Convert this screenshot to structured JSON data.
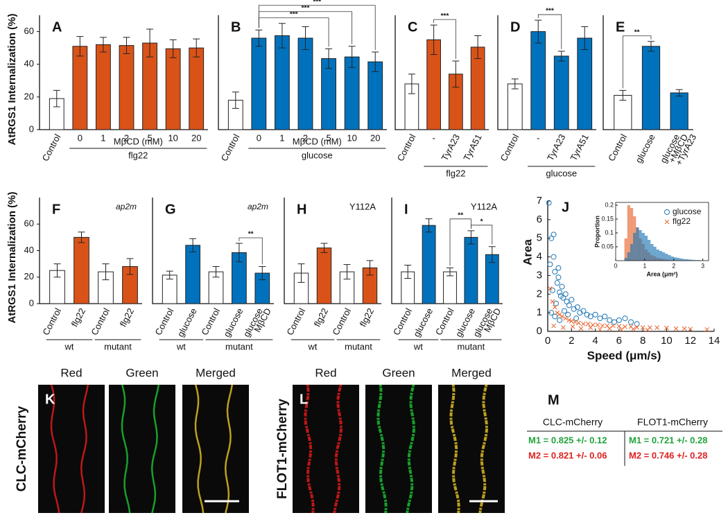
{
  "chart_data": [
    {
      "type": "bar",
      "panel": "A",
      "ylabel": "AtRGS1 Internalization (%)",
      "categories": [
        "Control",
        "0",
        "1",
        "2",
        "5",
        "10",
        "20"
      ],
      "values": [
        19,
        51,
        52,
        51.5,
        53,
        49.5,
        50
      ],
      "errors": [
        5,
        6,
        4.5,
        5,
        8.5,
        5.5,
        5.5
      ],
      "colors": [
        "#ffffff",
        "#d95319",
        "#d95319",
        "#d95319",
        "#d95319",
        "#d95319",
        "#d95319"
      ],
      "ylim": [
        0,
        70
      ],
      "yticks": [
        0,
        20,
        40,
        60
      ],
      "groups": [
        [
          {
            "label": "MβCD (mM)",
            "span": [
              1,
              6
            ]
          }
        ],
        [
          {
            "label": "flg22",
            "span": [
              1,
              6
            ]
          }
        ]
      ]
    },
    {
      "type": "bar",
      "panel": "B",
      "categories": [
        "Control",
        "0",
        "1",
        "2",
        "5",
        "10",
        "20"
      ],
      "values": [
        18,
        56,
        57.5,
        56,
        43.5,
        44.5,
        41.5
      ],
      "errors": [
        5,
        5,
        7.5,
        7,
        6,
        6.5,
        6
      ],
      "colors": [
        "#ffffff",
        "#0072bd",
        "#0072bd",
        "#0072bd",
        "#0072bd",
        "#0072bd",
        "#0072bd"
      ],
      "ylim": [
        0,
        70
      ],
      "groups": [
        [
          {
            "label": "MβCD (mM)",
            "span": [
              1,
              6
            ]
          }
        ],
        [
          {
            "label": "glucose",
            "span": [
              1,
              6
            ]
          }
        ]
      ],
      "significance": [
        {
          "between": [
            1,
            4
          ],
          "label": "***"
        },
        {
          "between": [
            1,
            5
          ],
          "label": "***"
        },
        {
          "between": [
            1,
            6
          ],
          "label": "***"
        }
      ]
    },
    {
      "type": "bar",
      "panel": "C",
      "categories": [
        "Control",
        "-",
        "TyrA23",
        "TyrA51"
      ],
      "values": [
        28,
        55,
        34,
        50.5
      ],
      "errors": [
        6,
        9,
        8,
        7
      ],
      "colors": [
        "#ffffff",
        "#d95319",
        "#d95319",
        "#d95319"
      ],
      "ylim": [
        0,
        70
      ],
      "groups": [
        [
          {
            "label": "flg22",
            "span": [
              1,
              3
            ]
          }
        ]
      ],
      "significance": [
        {
          "between": [
            1,
            2
          ],
          "label": "***"
        }
      ]
    },
    {
      "type": "bar",
      "panel": "D",
      "categories": [
        "Control",
        "-",
        "TyrA23",
        "TyrA51"
      ],
      "values": [
        28,
        60,
        45,
        56
      ],
      "errors": [
        3,
        7,
        3,
        7
      ],
      "colors": [
        "#ffffff",
        "#0072bd",
        "#0072bd",
        "#0072bd"
      ],
      "ylim": [
        0,
        70
      ],
      "groups": [
        [
          {
            "label": "glucose",
            "span": [
              1,
              3
            ]
          }
        ]
      ],
      "significance": [
        {
          "between": [
            1,
            2
          ],
          "label": "***"
        }
      ]
    },
    {
      "type": "bar",
      "panel": "E",
      "categories": [
        "Control",
        "glucose",
        [
          "glucose",
          "+MβCD",
          "+TyrA23"
        ]
      ],
      "values": [
        21,
        51,
        22.5
      ],
      "errors": [
        3,
        3,
        2
      ],
      "colors": [
        "#ffffff",
        "#0072bd",
        "#0072bd"
      ],
      "ylim": [
        0,
        70
      ],
      "significance": [
        {
          "between": [
            0,
            1
          ],
          "label": "**"
        }
      ]
    },
    {
      "type": "bar",
      "panel": "F",
      "note": "ap2m",
      "ylabel": "AtRGS1 Internalization (%)",
      "categories": [
        "Control",
        "flg22",
        "Control",
        "flg22"
      ],
      "values": [
        25,
        50,
        24,
        28
      ],
      "errors": [
        5,
        4,
        6,
        6
      ],
      "colors": [
        "#ffffff",
        "#d95319",
        "#ffffff",
        "#d95319"
      ],
      "ylim": [
        0,
        80
      ],
      "yticks": [
        0,
        20,
        40,
        60
      ],
      "groups": [
        [
          {
            "label": "wt",
            "span": [
              0,
              1
            ]
          },
          {
            "label": "mutant",
            "span": [
              2,
              3
            ]
          }
        ]
      ]
    },
    {
      "type": "bar",
      "panel": "G",
      "note": "ap2m",
      "categories": [
        "Control",
        "glucose",
        "Control",
        "glucose",
        [
          "glucose",
          "MβCD"
        ]
      ],
      "values": [
        21.5,
        44,
        24,
        38.5,
        23
      ],
      "errors": [
        3,
        5,
        4,
        7,
        5
      ],
      "colors": [
        "#ffffff",
        "#0072bd",
        "#ffffff",
        "#0072bd",
        "#0072bd"
      ],
      "ylim": [
        0,
        80
      ],
      "groups": [
        [
          {
            "label": "wt",
            "span": [
              0,
              1
            ]
          },
          {
            "label": "mutant",
            "span": [
              2,
              4
            ]
          }
        ]
      ],
      "significance": [
        {
          "between": [
            3,
            4
          ],
          "label": "**"
        }
      ]
    },
    {
      "type": "bar",
      "panel": "H",
      "note": "Y112A",
      "categories": [
        "Control",
        "flg22",
        "Control",
        "flg22"
      ],
      "values": [
        23,
        42,
        24,
        27
      ],
      "errors": [
        7,
        3.5,
        5.5,
        5.5
      ],
      "colors": [
        "#ffffff",
        "#d95319",
        "#ffffff",
        "#d95319"
      ],
      "ylim": [
        0,
        80
      ],
      "groups": [
        [
          {
            "label": "wt",
            "span": [
              0,
              1
            ]
          },
          {
            "label": "mutant",
            "span": [
              2,
              3
            ]
          }
        ]
      ]
    },
    {
      "type": "bar",
      "panel": "I",
      "note": "Y112A",
      "categories": [
        "Control",
        "glucose",
        "Control",
        "glucose",
        [
          "glucose",
          "MβCD"
        ]
      ],
      "values": [
        24,
        59,
        24,
        50,
        37
      ],
      "errors": [
        5,
        5,
        3,
        5,
        6
      ],
      "colors": [
        "#ffffff",
        "#0072bd",
        "#ffffff",
        "#0072bd",
        "#0072bd"
      ],
      "ylim": [
        0,
        80
      ],
      "groups": [
        [
          {
            "label": "wt",
            "span": [
              0,
              1
            ]
          },
          {
            "label": "mutant",
            "span": [
              2,
              4
            ]
          }
        ]
      ],
      "significance": [
        {
          "between": [
            3,
            4
          ],
          "label": "*"
        },
        {
          "between": [
            2,
            3
          ],
          "label": "**"
        }
      ]
    },
    {
      "type": "scatter",
      "panel": "J",
      "xlabel": "Speed (μm/s)",
      "ylabel": "Area",
      "xlim": [
        0,
        14
      ],
      "xticks": [
        0,
        2,
        4,
        6,
        8,
        10,
        12,
        14
      ],
      "ylim": [
        0,
        7
      ],
      "yticks": [
        0,
        1,
        2,
        3,
        4,
        5,
        6,
        7
      ],
      "series": [
        {
          "name": "glucose",
          "color": "#1f77b4",
          "marker": "circle",
          "x": [
            0.1,
            0.3,
            0.5,
            0.6,
            0.8,
            0.9,
            1.0,
            1.2,
            1.3,
            1.5,
            1.6,
            1.8,
            2.0,
            2.2,
            2.5,
            2.7,
            3.0,
            3.3,
            3.6,
            4.0,
            4.4,
            4.8,
            5.2,
            5.6,
            6.0,
            6.5,
            7.0,
            7.5,
            0.2,
            0.4,
            0.7,
            1.1,
            1.4,
            0.5,
            0.9,
            1.7,
            2.4,
            0.3,
            0.6,
            1.0
          ],
          "y": [
            6.9,
            5.0,
            4.0,
            3.2,
            2.6,
            2.9,
            2.1,
            2.4,
            1.8,
            2.0,
            1.6,
            1.4,
            1.7,
            1.2,
            1.3,
            1.0,
            1.1,
            0.9,
            0.8,
            0.9,
            0.7,
            0.8,
            0.6,
            0.5,
            0.6,
            0.7,
            0.5,
            0.4,
            3.6,
            2.2,
            1.5,
            1.9,
            1.1,
            5.2,
            3.4,
            0.9,
            0.7,
            1.0,
            0.8,
            0.6
          ]
        },
        {
          "name": "flg22",
          "color": "#e8642c",
          "marker": "x",
          "x": [
            0.2,
            0.4,
            0.6,
            0.8,
            1.0,
            1.2,
            1.5,
            1.8,
            2.0,
            2.3,
            2.6,
            3.0,
            3.4,
            3.8,
            4.2,
            4.6,
            5.0,
            5.5,
            6.0,
            6.5,
            7.0,
            7.5,
            8.0,
            8.6,
            9.2,
            10.0,
            10.8,
            11.5,
            12.0,
            13.4,
            0.5,
            1.3,
            2.1,
            2.8,
            3.6,
            4.4,
            5.2,
            6.2,
            7.2,
            8.4
          ],
          "y": [
            2.3,
            1.6,
            1.3,
            1.0,
            0.9,
            0.8,
            0.7,
            0.6,
            0.55,
            0.5,
            0.45,
            0.4,
            0.4,
            0.35,
            0.35,
            0.3,
            0.3,
            0.3,
            0.28,
            0.25,
            0.25,
            0.22,
            0.2,
            0.2,
            0.2,
            0.18,
            0.15,
            0.15,
            0.12,
            0.1,
            0.3,
            0.2,
            0.25,
            0.15,
            0.2,
            0.1,
            0.15,
            0.1,
            0.12,
            0.08
          ]
        }
      ],
      "inset": {
        "type": "histogram",
        "xlabel": "Area (μm²)",
        "ylabel": "Proportion",
        "xlim": [
          0,
          3.2
        ],
        "xticks": [
          0,
          1,
          2,
          3
        ],
        "ylim": [
          0,
          0.21
        ],
        "yticks": [
          0.05,
          0.1,
          0.15,
          0.2
        ],
        "bins": [
          0.2,
          0.3,
          0.4,
          0.5,
          0.6,
          0.7,
          0.8,
          0.9,
          1.0,
          1.1,
          1.2,
          1.3,
          1.4,
          1.5,
          1.6,
          1.7,
          1.8,
          1.9,
          2.0,
          2.1,
          2.2,
          2.3,
          2.4,
          2.5,
          2.6,
          2.7,
          2.8,
          2.9,
          3.0
        ],
        "series": [
          {
            "color": "#e8642c",
            "values": [
              0.0,
              0.08,
              0.2,
              0.19,
              0.16,
              0.12,
              0.08,
              0.06,
              0.04,
              0.03,
              0.02,
              0.015,
              0.01,
              0.008,
              0.006,
              0.004,
              0.003,
              0.002,
              0.001,
              0.001,
              0,
              0,
              0,
              0,
              0,
              0,
              0,
              0
            ]
          },
          {
            "color": "#1f77b4",
            "values": [
              0,
              0.01,
              0.03,
              0.06,
              0.1,
              0.12,
              0.11,
              0.1,
              0.09,
              0.075,
              0.06,
              0.05,
              0.04,
              0.035,
              0.03,
              0.025,
              0.02,
              0.015,
              0.012,
              0.01,
              0.008,
              0.006,
              0.005,
              0.004,
              0.003,
              0.002,
              0.002,
              0.001
            ]
          }
        ]
      }
    }
  ],
  "images": [
    {
      "panel": "K",
      "label": "CLC-mCherry",
      "channels": [
        "Red",
        "Green",
        "Merged"
      ]
    },
    {
      "panel": "L",
      "label": "FLOT1-mCherry",
      "channels": [
        "Red",
        "Green",
        "Merged"
      ]
    }
  ],
  "table": {
    "panel": "M",
    "header": [
      "CLC-mCherry",
      "FLOT1-mCherry"
    ],
    "rows": [
      [
        "M1 =  0.825 +/- 0.12",
        "M1 =  0.721 +/- 0.28"
      ],
      [
        "M2 =  0.821 +/- 0.06",
        "M2 =  0.746 +/- 0.28"
      ]
    ],
    "row_colors": [
      "#1fa33a",
      "#e02020"
    ]
  }
}
